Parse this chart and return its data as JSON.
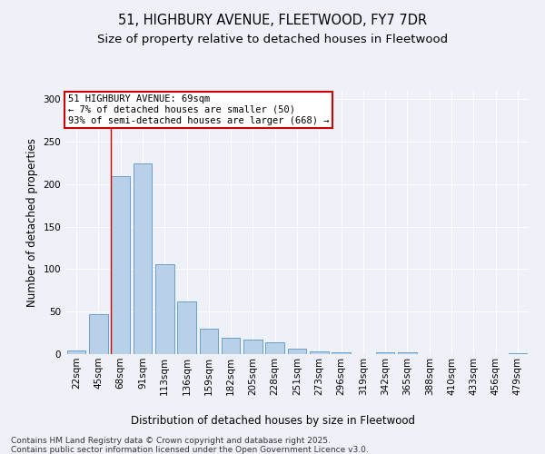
{
  "title_line1": "51, HIGHBURY AVENUE, FLEETWOOD, FY7 7DR",
  "title_line2": "Size of property relative to detached houses in Fleetwood",
  "xlabel": "Distribution of detached houses by size in Fleetwood",
  "ylabel": "Number of detached properties",
  "bin_labels": [
    "22sqm",
    "45sqm",
    "68sqm",
    "91sqm",
    "113sqm",
    "136sqm",
    "159sqm",
    "182sqm",
    "205sqm",
    "228sqm",
    "251sqm",
    "273sqm",
    "296sqm",
    "319sqm",
    "342sqm",
    "365sqm",
    "388sqm",
    "410sqm",
    "433sqm",
    "456sqm",
    "479sqm"
  ],
  "bar_values": [
    4,
    47,
    210,
    225,
    106,
    62,
    30,
    19,
    17,
    14,
    6,
    3,
    2,
    0,
    2,
    2,
    0,
    0,
    0,
    0,
    1
  ],
  "bar_color": "#b8d0e8",
  "bar_edge_color": "#6aa0cc",
  "annotation_text": "51 HIGHBURY AVENUE: 69sqm\n← 7% of detached houses are smaller (50)\n93% of semi-detached houses are larger (668) →",
  "annotation_box_color": "#ffffff",
  "annotation_box_edge_color": "#cc0000",
  "vline_bar_index": 2,
  "vline_color": "#cc0000",
  "ylim": [
    0,
    310
  ],
  "yticks": [
    0,
    50,
    100,
    150,
    200,
    250,
    300
  ],
  "background_color": "#eef2f8",
  "footer_line1": "Contains HM Land Registry data © Crown copyright and database right 2025.",
  "footer_line2": "Contains public sector information licensed under the Open Government Licence v3.0.",
  "title_fontsize": 10.5,
  "subtitle_fontsize": 9.5,
  "ylabel_fontsize": 8.5,
  "xlabel_fontsize": 8.5,
  "tick_fontsize": 7.5,
  "annotation_fontsize": 7.5,
  "footer_fontsize": 6.5
}
